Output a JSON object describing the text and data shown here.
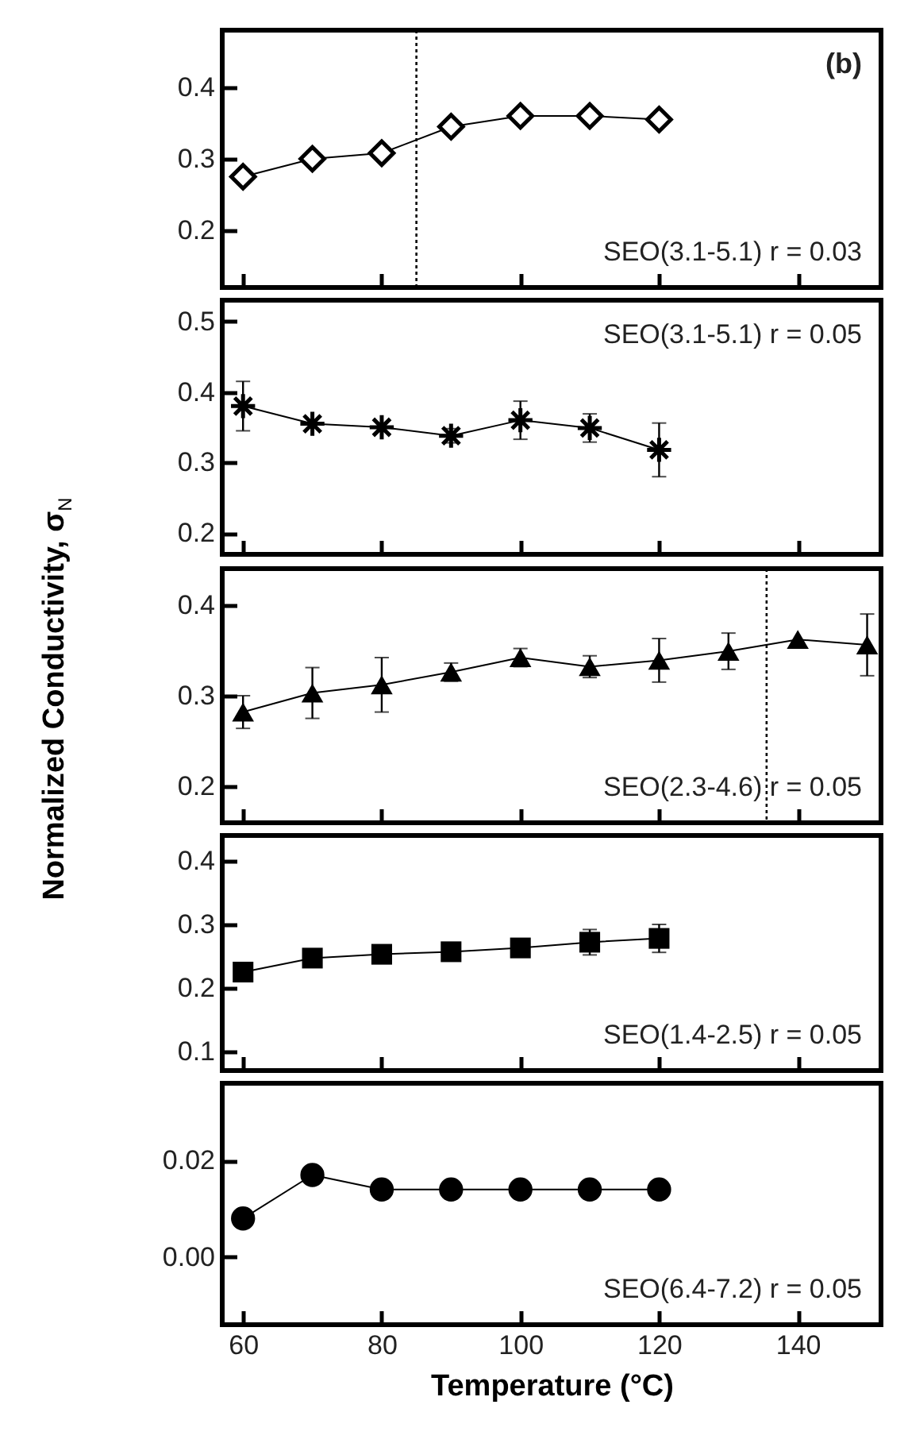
{
  "chart_data": [
    {
      "type": "line",
      "x": [
        60,
        70,
        80,
        90,
        100,
        110,
        120
      ],
      "series": [
        {
          "color": "#000000",
          "marker": "diamond",
          "values": [
            0.275,
            0.3,
            0.308,
            0.345,
            0.36,
            0.36,
            0.355
          ]
        }
      ],
      "xlim": [
        57,
        152
      ],
      "xticks": [
        60,
        80,
        100,
        120,
        140
      ],
      "ylim": [
        0.12,
        0.48
      ],
      "yticks": [
        0.2,
        0.3,
        0.4
      ],
      "tick_labels": "y",
      "line_style": "solid",
      "ref_lines": [
        {
          "axis": "x",
          "value": 85,
          "line_style": "dotted"
        }
      ],
      "annotations": [
        "(b)",
        "SEO(3.1-5.1) r = 0.03"
      ]
    },
    {
      "type": "line",
      "x": [
        60,
        70,
        80,
        90,
        100,
        110,
        120
      ],
      "series": [
        {
          "color": "#000000",
          "marker": "cross",
          "values": [
            0.38,
            0.355,
            0.35,
            0.338,
            0.36,
            0.349,
            0.318
          ],
          "errors": [
            0.035,
            null,
            null,
            0.01,
            0.027,
            0.02,
            0.038
          ]
        }
      ],
      "xlim": [
        57,
        152
      ],
      "xticks": [
        60,
        80,
        100,
        120,
        140
      ],
      "ylim": [
        0.17,
        0.53
      ],
      "yticks": [
        0.2,
        0.3,
        0.4,
        0.5
      ],
      "tick_labels": "y",
      "line_style": "solid",
      "annotations": [
        "SEO(3.1-5.1) r = 0.05"
      ]
    },
    {
      "type": "line",
      "x": [
        60,
        70,
        80,
        90,
        100,
        110,
        120,
        130,
        140,
        150
      ],
      "series": [
        {
          "color": "#000000",
          "marker": "triangle",
          "values": [
            0.282,
            0.303,
            0.312,
            0.326,
            0.342,
            0.332,
            0.339,
            0.349,
            0.362,
            0.356
          ],
          "errors": [
            0.018,
            0.028,
            0.03,
            0.01,
            0.01,
            0.012,
            0.024,
            0.02,
            null,
            0.034
          ]
        }
      ],
      "xlim": [
        57,
        152
      ],
      "xticks": [
        60,
        80,
        100,
        120,
        140
      ],
      "ylim": [
        0.16,
        0.44
      ],
      "yticks": [
        0.2,
        0.3,
        0.4
      ],
      "tick_labels": "y",
      "line_style": "solid",
      "ylabel": "Normalized Conductivity, σ$_{N}$",
      "ref_lines": [
        {
          "axis": "x",
          "value": 135.5,
          "line_style": "dotted"
        }
      ],
      "annotations": [
        "SEO(2.3-4.6) r = 0.05"
      ]
    },
    {
      "type": "line",
      "x": [
        60,
        70,
        80,
        90,
        100,
        110,
        120
      ],
      "series": [
        {
          "color": "#000000",
          "marker": "square",
          "values": [
            0.225,
            0.247,
            0.253,
            0.257,
            0.263,
            0.272,
            0.278
          ],
          "errors": [
            null,
            null,
            null,
            null,
            null,
            0.02,
            0.022
          ]
        }
      ],
      "xlim": [
        57,
        152
      ],
      "xticks": [
        60,
        80,
        100,
        120,
        140
      ],
      "ylim": [
        0.07,
        0.44
      ],
      "yticks": [
        0.1,
        0.2,
        0.3,
        0.4
      ],
      "tick_labels": "y",
      "line_style": "solid",
      "annotations": [
        "SEO(1.4-2.5) r = 0.05"
      ]
    },
    {
      "type": "line",
      "x": [
        60,
        70,
        80,
        90,
        100,
        110,
        120
      ],
      "series": [
        {
          "color": "#000000",
          "marker": "circle",
          "values": [
            0.008,
            0.017,
            0.014,
            0.014,
            0.014,
            0.014,
            0.014
          ]
        }
      ],
      "xlim": [
        57,
        152
      ],
      "xticks": [
        60,
        80,
        100,
        120,
        140
      ],
      "ylim": [
        -0.014,
        0.036
      ],
      "yticks": [
        {
          "value": 0,
          "label": "0.00"
        },
        {
          "value": 0.02,
          "label": "0.02"
        }
      ],
      "line_style": "solid",
      "xlabel": "Temperature (°C)",
      "annotations": [
        "SEO(6.4-7.2) r = 0.05"
      ]
    }
  ]
}
